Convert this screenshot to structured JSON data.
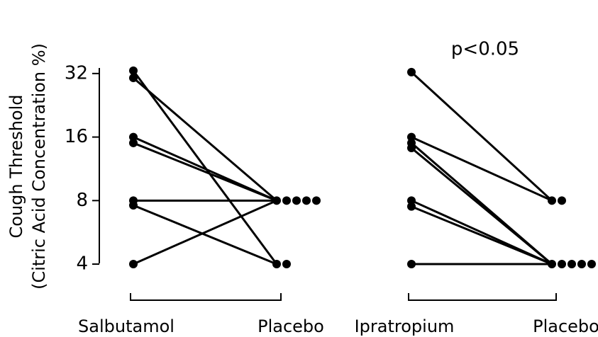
{
  "chart_data": [
    {
      "type": "paired-dot",
      "y_label": [
        "Cough Threshold",
        "(Citric Acid Concentration %)"
      ],
      "categories": [
        "Salbutamol",
        "Placebo"
      ],
      "values": [
        [
          33,
          4
        ],
        [
          30.5,
          8
        ],
        [
          16,
          8
        ],
        [
          15,
          8
        ],
        [
          8,
          8
        ],
        [
          7.6,
          4
        ],
        [
          4,
          8
        ]
      ],
      "ylim": [
        3.85,
        34
      ],
      "yticks": [
        4,
        8,
        16,
        32
      ],
      "log_scale": true,
      "color": "#000000"
    },
    {
      "type": "paired-dot",
      "annotation": "p<0.05",
      "categories": [
        "Ipratropium",
        "Placebo"
      ],
      "values": [
        [
          32.5,
          8
        ],
        [
          16,
          8
        ],
        [
          15,
          4
        ],
        [
          14.2,
          4
        ],
        [
          8,
          4
        ],
        [
          7.5,
          4
        ],
        [
          4,
          4
        ]
      ],
      "ylim": [
        3.85,
        34
      ],
      "log_scale": true,
      "color": "#000000"
    }
  ]
}
